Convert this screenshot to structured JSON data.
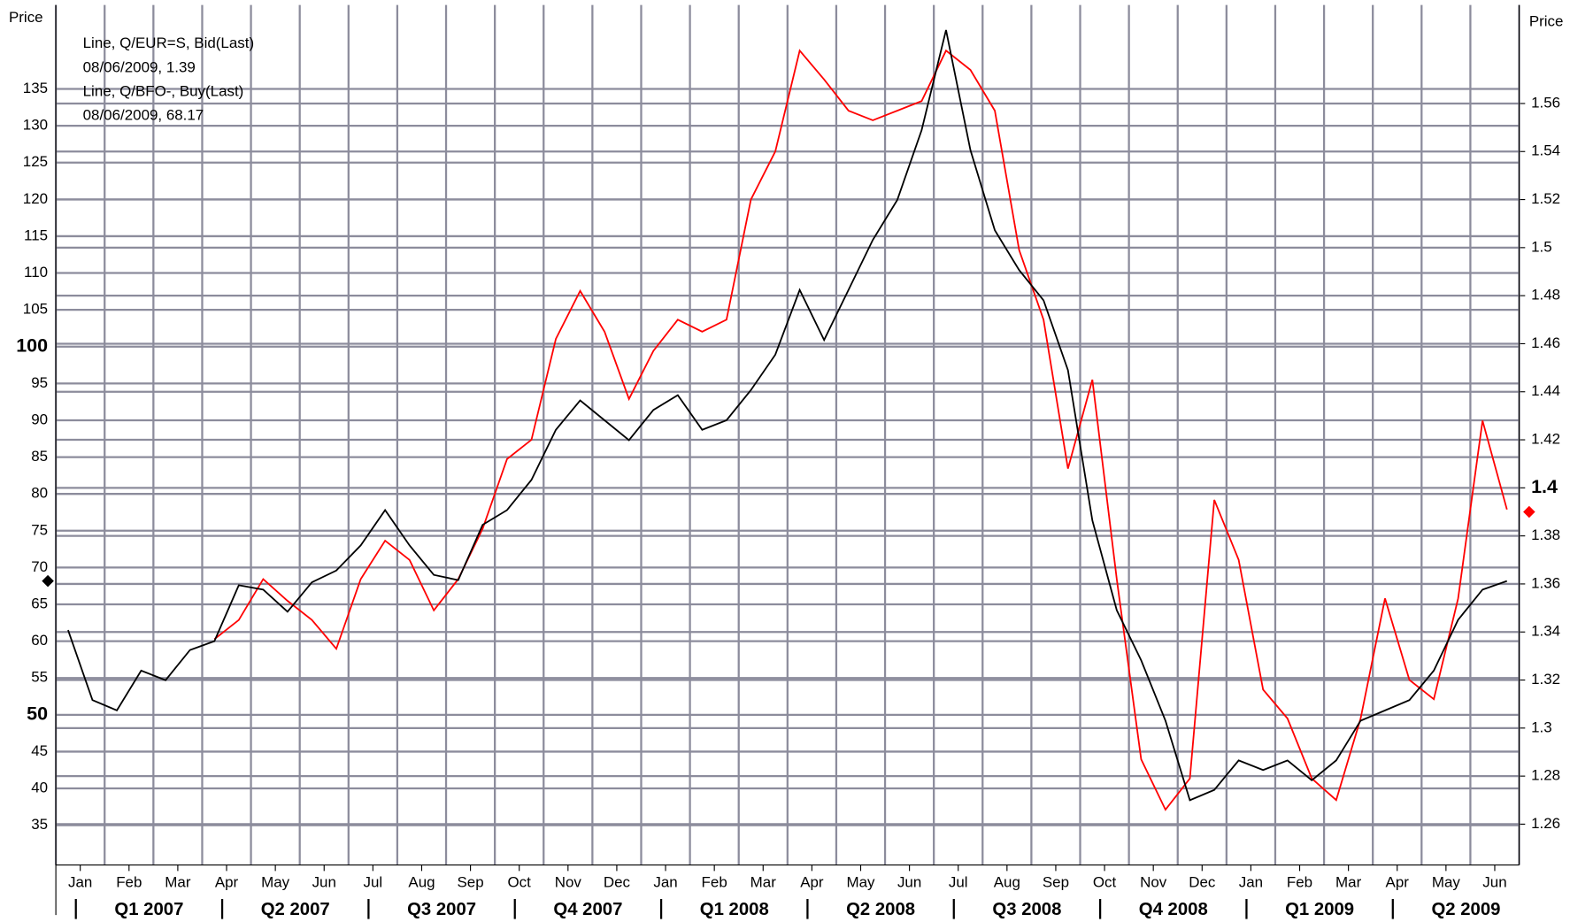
{
  "chart_data": {
    "type": "line",
    "ylabel": "Price",
    "y2label": "Price",
    "categories": [
      "Jan",
      null,
      "Feb",
      null,
      "Mar",
      null,
      "Apr",
      null,
      "May",
      null,
      "Jun",
      null,
      "Jul",
      null,
      "Aug",
      null,
      "Sep",
      null,
      "Oct",
      null,
      "Nov",
      null,
      "Dec",
      null,
      "Jan",
      null,
      "Feb",
      null,
      "Mar",
      null,
      "Apr",
      null,
      "May",
      null,
      "Jun",
      null,
      "Jul",
      null,
      "Aug",
      null,
      "Sep",
      null,
      "Oct",
      null,
      "Nov",
      null,
      "Dec",
      null,
      "Jan",
      null,
      "Feb",
      null,
      "Mar",
      null,
      "Apr",
      null,
      "May",
      null,
      "Jun",
      null
    ],
    "quarters": [
      "Q1 2007",
      "Q2 2007",
      "Q3 2007",
      "Q4 2007",
      "Q1 2008",
      "Q2 2008",
      "Q3 2008",
      "Q4 2008",
      "Q1 2009",
      "Q2 2009"
    ],
    "ylim": [
      29.6,
      146.4
    ],
    "yticks": [
      35,
      40,
      45,
      50,
      55,
      60,
      65,
      70,
      75,
      80,
      85,
      90,
      95,
      100,
      105,
      110,
      115,
      120,
      125,
      130,
      135
    ],
    "y2lim": [
      1.243,
      1.601
    ],
    "y2ticks": [
      1.26,
      1.28,
      1.3,
      1.32,
      1.34,
      1.36,
      1.38,
      1.4,
      1.42,
      1.44,
      1.46,
      1.48,
      1.5,
      1.52,
      1.54,
      1.56
    ],
    "bold_ticks": [
      50,
      100,
      1.4
    ],
    "grid": true,
    "series": [
      {
        "name": "Line, Q/EUR=S, Bid(Last)",
        "last_label": "08/06/2009, 1.39",
        "last_value": 1.39,
        "color": "#ff0000",
        "axis": "y2",
        "values": [
          null,
          null,
          null,
          null,
          null,
          null,
          1.337,
          1.345,
          1.362,
          1.353,
          1.345,
          1.333,
          1.362,
          1.378,
          1.37,
          1.349,
          1.362,
          1.383,
          1.412,
          1.42,
          1.462,
          1.482,
          1.465,
          1.437,
          1.457,
          1.47,
          1.465,
          1.47,
          1.52,
          1.54,
          1.582,
          1.57,
          1.557,
          1.553,
          1.557,
          1.561,
          1.582,
          1.574,
          1.557,
          1.499,
          1.47,
          1.408,
          1.445,
          1.362,
          1.287,
          1.266,
          1.279,
          1.395,
          1.37,
          1.316,
          1.304,
          1.279,
          1.27,
          1.304,
          1.354,
          1.32,
          1.312,
          1.354,
          1.428,
          1.391
        ]
      },
      {
        "name": "Line, Q/BFO-, Buy(Last)",
        "last_label": "08/06/2009, 68.17",
        "last_value": 68.17,
        "color": "#000000",
        "values": [
          61.5,
          52,
          50.6,
          56,
          54.7,
          58.8,
          60,
          67.6,
          67,
          64,
          68,
          69.6,
          73,
          77.8,
          73,
          69,
          68.3,
          75.8,
          77.8,
          81.9,
          88.7,
          92.7,
          90,
          87.3,
          91.4,
          93.4,
          88.7,
          90,
          94.1,
          98.9,
          107.7,
          100.9,
          107.7,
          114.5,
          119.9,
          129.4,
          143,
          126.7,
          115.8,
          110.4,
          106.3,
          96.8,
          76.4,
          64.2,
          57.4,
          49.2,
          38.4,
          39.8,
          43.8,
          42.5,
          43.8,
          41.1,
          43.8,
          49.2,
          50.6,
          52,
          56,
          62.9,
          67,
          68.17
        ]
      }
    ]
  }
}
